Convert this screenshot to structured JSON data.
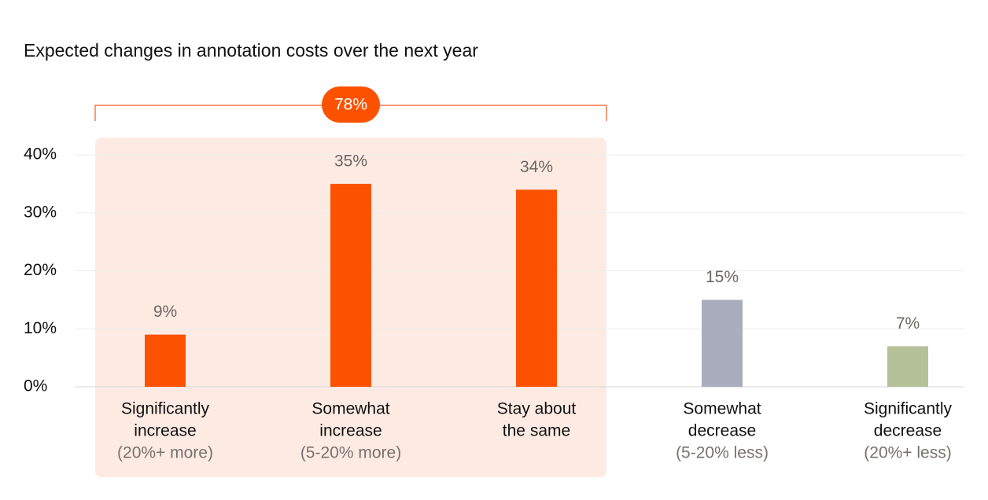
{
  "chart_data": {
    "type": "bar",
    "title": "Expected changes in annotation costs over the next year",
    "categories": [
      [
        "Significantly",
        "increase"
      ],
      [
        "Somewhat",
        "increase"
      ],
      [
        "Stay about",
        "the same"
      ],
      [
        "Somewhat",
        "decrease"
      ],
      [
        "Significantly",
        "decrease"
      ]
    ],
    "sublabels": [
      "(20%+ more)",
      "(5-20% more)",
      null,
      "(5-20% less)",
      "(20%+ less)"
    ],
    "values": [
      9,
      35,
      34,
      15,
      7
    ],
    "value_labels": [
      "9%",
      "35%",
      "34%",
      "15%",
      "7%"
    ],
    "colors": [
      "#fc5200",
      "#fc5200",
      "#fc5200",
      "#a9adbd",
      "#b5c199"
    ],
    "ylim": [
      0,
      40
    ],
    "yticks": [
      {
        "value": 0,
        "label": "0%"
      },
      {
        "value": 10,
        "label": "10%"
      },
      {
        "value": 20,
        "label": "20%"
      },
      {
        "value": 30,
        "label": "30%"
      },
      {
        "value": 40,
        "label": "40%"
      }
    ],
    "grid": true,
    "annotation": {
      "value": 78,
      "label": "78%"
    }
  }
}
